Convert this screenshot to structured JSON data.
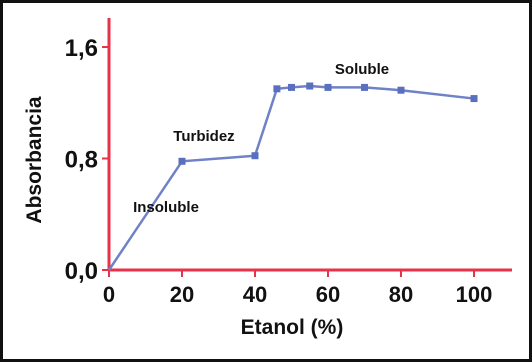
{
  "chart_data": {
    "type": "line",
    "xlabel": "Etanol (%)",
    "ylabel": "Absorbancia",
    "xlim": [
      0,
      100
    ],
    "ylim": [
      0,
      1.6
    ],
    "x_ticks": [
      0,
      20,
      40,
      60,
      80,
      100
    ],
    "x_tick_labels": [
      "0",
      "20",
      "40",
      "60",
      "80",
      "100"
    ],
    "y_ticks": [
      0,
      0.8,
      1.6
    ],
    "y_tick_labels": [
      "0,0",
      "0,8",
      "1,6"
    ],
    "grid": false,
    "series": [
      {
        "x": [
          0,
          20,
          40,
          46,
          50,
          55,
          60,
          70,
          80,
          100
        ],
        "y": [
          0.0,
          0.78,
          0.82,
          1.3,
          1.31,
          1.32,
          1.31,
          1.31,
          1.29,
          1.23
        ]
      }
    ],
    "annotations": [
      {
        "text": "Insoluble",
        "x": 18,
        "y": 0.45
      },
      {
        "text": "Turbidez",
        "x": 26,
        "y": 0.88
      },
      {
        "text": "Soluble",
        "x": 70,
        "y": 1.41
      }
    ],
    "colors": {
      "line": "#6f82c8",
      "marker": "#5a6fbf",
      "axes": "#e8324a",
      "frame": "#111111",
      "text": "#111111"
    }
  }
}
